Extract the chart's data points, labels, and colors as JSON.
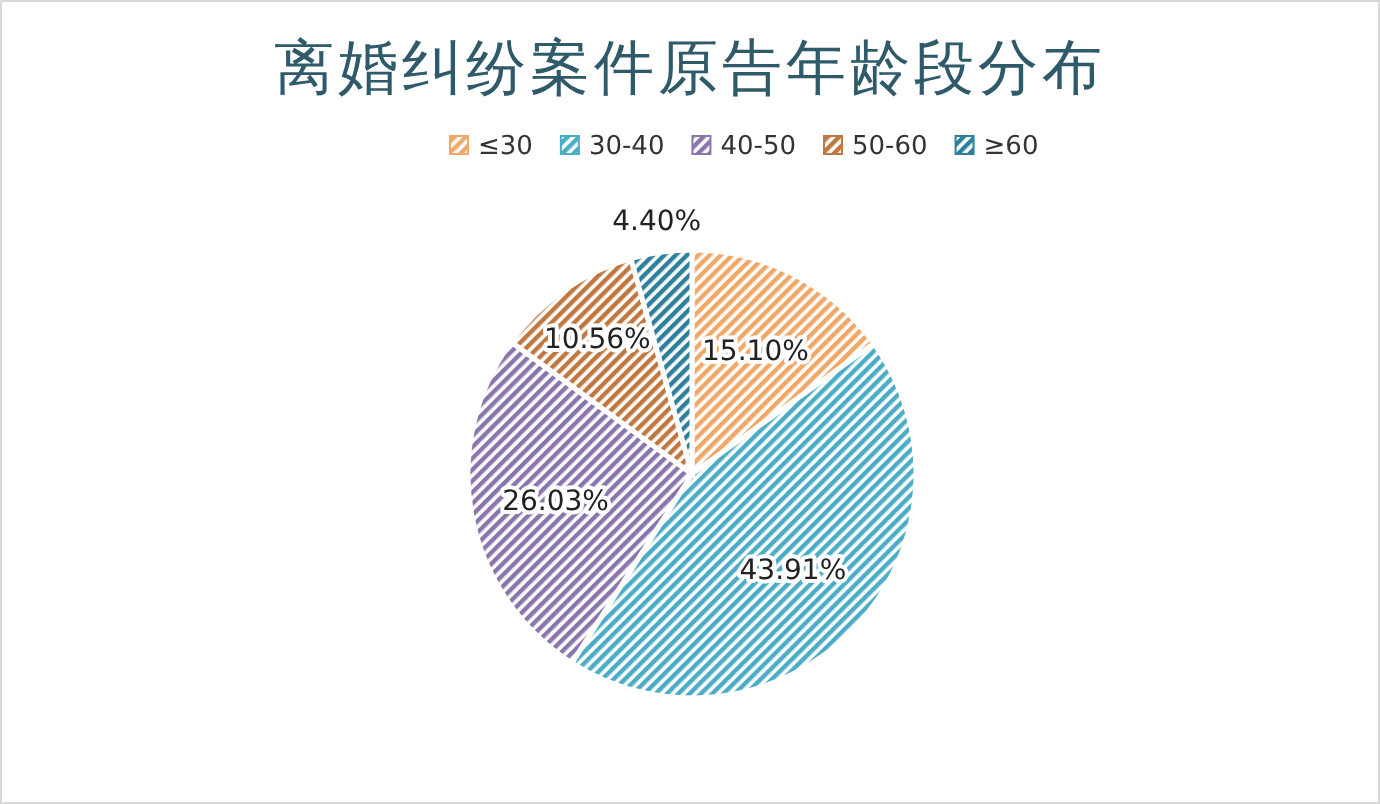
{
  "chart_data": {
    "type": "pie",
    "title": "离婚纠纷案件原告年龄段分布",
    "categories": [
      "≤30",
      "30-40",
      "40-50",
      "50-60",
      "≥60"
    ],
    "values": [
      15.1,
      43.91,
      26.03,
      10.56,
      4.4
    ],
    "value_labels": [
      "15.10%",
      "43.91%",
      "26.03%",
      "10.56%",
      "4.40%"
    ],
    "colors": [
      "#f0a868",
      "#4bacc6",
      "#8a76ad",
      "#c07840",
      "#2e7f9c"
    ],
    "legend": "top"
  }
}
